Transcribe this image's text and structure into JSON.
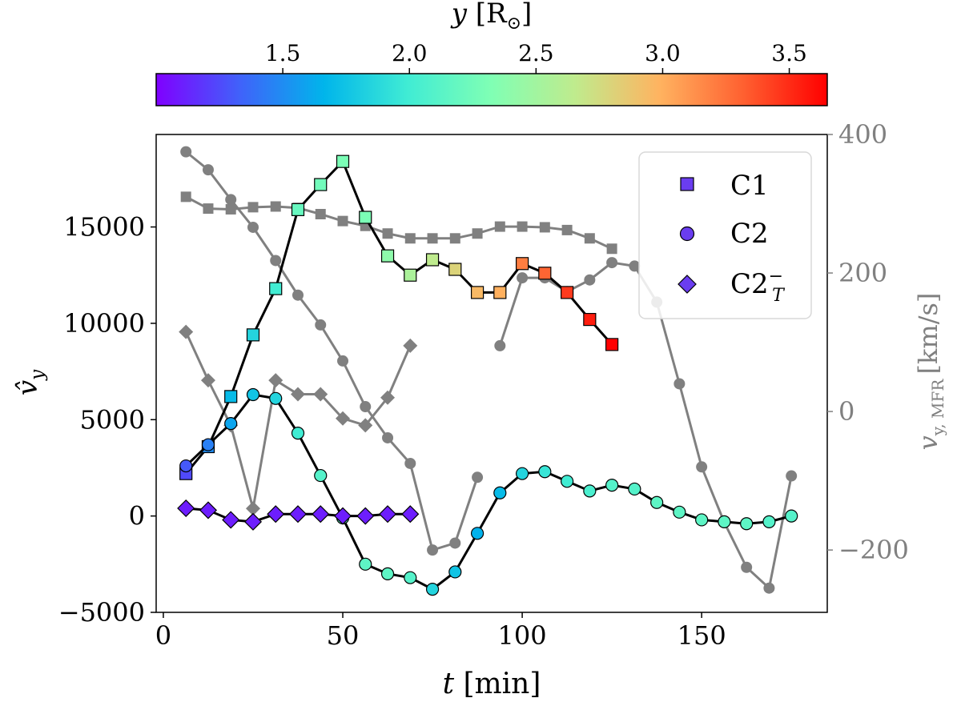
{
  "chart_data": {
    "type": "line",
    "xlabel_var": "t",
    "xlabel_unit": "[min]",
    "ylabel_left": "v̂",
    "ylabel_left_sub": "y",
    "ylabel_right_var": "v",
    "ylabel_right_sub": "y, MFR",
    "ylabel_right_unit": "[km/s]",
    "colorbar_label_var": "y",
    "colorbar_label_unit": "[R",
    "colorbar_label_sub": "⊙",
    "colorbar_label_close": "]",
    "xlim": [
      -2,
      185
    ],
    "ylim_left": [
      -5000,
      19800
    ],
    "ylim_right": [
      -290,
      400
    ],
    "clim": [
      1.0,
      3.65
    ],
    "x_ticks": [
      0,
      50,
      100,
      150
    ],
    "x_tick_labels": [
      "0",
      "50",
      "100",
      "150"
    ],
    "y_left_ticks": [
      -5000,
      0,
      5000,
      10000,
      15000
    ],
    "y_left_tick_labels": [
      "−5000",
      "0",
      "5000",
      "10000",
      "15000"
    ],
    "y_right_ticks": [
      -200,
      0,
      200,
      400
    ],
    "y_right_tick_labels": [
      "−200",
      "0",
      "200",
      "400"
    ],
    "cbar_ticks": [
      1.5,
      2.0,
      2.5,
      3.0,
      3.5
    ],
    "cbar_tick_labels": [
      "1.5",
      "2.0",
      "2.5",
      "3.0",
      "3.5"
    ],
    "legend": {
      "placement": "top-right",
      "entries": [
        {
          "label": "C1",
          "marker": "square"
        },
        {
          "label": "C2",
          "marker": "circle"
        },
        {
          "label": "C2",
          "sub": "T",
          "sup": "−",
          "marker": "diamond"
        }
      ]
    },
    "colors": {
      "mfr_line": "#808080",
      "main_line": "#000000",
      "legend_marker": "#6a3df0"
    },
    "series": [
      {
        "legend_index": 0,
        "marker": "square",
        "x": [
          6.3,
          12.5,
          18.8,
          25,
          31.3,
          37.5,
          43.8,
          50,
          56.3,
          62.5,
          68.8,
          75,
          81.3,
          87.5,
          93.8,
          100,
          106.3,
          112.5,
          118.8,
          125
        ],
        "v_hat": [
          2200,
          3600,
          6200,
          9400,
          11800,
          15900,
          17200,
          18400,
          15500,
          13500,
          12500,
          13300,
          12800,
          11600,
          11600,
          13100,
          12600,
          11600,
          10200,
          8900
        ],
        "y_pos": [
          1.25,
          1.5,
          1.7,
          1.85,
          2.0,
          2.2,
          2.25,
          2.3,
          2.3,
          2.4,
          2.55,
          2.65,
          2.8,
          2.95,
          3.0,
          3.2,
          3.3,
          3.45,
          3.55,
          3.65
        ],
        "mfr": [
          {
            "x": [
              6.3,
              12.5,
              18.8,
              25,
              31.3,
              37.5,
              43.8,
              50,
              56.3,
              62.5,
              68.8,
              75,
              81.3,
              87.5,
              93.8,
              100,
              106.3,
              112.5,
              118.8,
              125
            ],
            "v": [
              310,
              293,
              292,
              295,
              296,
              294,
              285,
              275,
              268,
              257,
              250,
              250,
              250,
              257,
              267,
              267,
              266,
              262,
              250,
              235
            ]
          }
        ]
      },
      {
        "legend_index": 1,
        "marker": "circle",
        "x": [
          6.3,
          12.5,
          18.8,
          25,
          31.3,
          37.5,
          43.8,
          50,
          56.3,
          62.5,
          68.8,
          75,
          81.3,
          87.5,
          93.8,
          100,
          106.3,
          112.5,
          118.8,
          125,
          131.3,
          137.5,
          143.8,
          150,
          156.3,
          162.5,
          168.8,
          175
        ],
        "v_hat": [
          2600,
          3700,
          4800,
          6300,
          6100,
          4300,
          2100,
          -100,
          -2500,
          -3000,
          -3200,
          -3800,
          -2900,
          -900,
          1200,
          2200,
          2300,
          1800,
          1300,
          1600,
          1400,
          700,
          200,
          -200,
          -300,
          -400,
          -300,
          0
        ],
        "y_pos": [
          1.3,
          1.45,
          1.6,
          1.75,
          1.85,
          2.0,
          2.1,
          2.15,
          2.15,
          2.15,
          2.1,
          1.85,
          1.75,
          1.65,
          1.7,
          1.85,
          1.95,
          2.0,
          2.05,
          2.1,
          2.1,
          2.15,
          2.15,
          2.15,
          2.15,
          2.15,
          2.1,
          2.1
        ],
        "mfr": [
          {
            "x": [
              6.3,
              12.5,
              18.8,
              25,
              31.3,
              37.5,
              43.8,
              50,
              56.3,
              62.5,
              68.8,
              75,
              81.3,
              87.5
            ],
            "v": [
              375,
              349,
              306,
              266,
              218,
              168,
              125,
              73,
              7,
              -38,
              -75,
              -200,
              -190,
              -95
            ]
          },
          {
            "x": [
              93.8,
              100,
              106.3,
              112.5,
              118.8,
              125,
              131.3,
              137.5,
              143.8,
              150,
              156.3,
              162.5,
              168.8,
              175
            ],
            "v": [
              95,
              193,
              193,
              173,
              190,
              215,
              210,
              158,
              40,
              -80,
              -160,
              -225,
              -255,
              -93
            ]
          }
        ]
      },
      {
        "legend_index": 2,
        "marker": "diamond",
        "x": [
          6.3,
          12.5,
          18.8,
          25,
          31.3,
          37.5,
          43.8,
          50,
          56.3,
          62.5,
          68.8
        ],
        "v_hat": [
          400,
          300,
          -200,
          -300,
          100,
          100,
          100,
          0,
          0,
          100,
          100
        ],
        "y_pos": [
          1.1,
          1.1,
          1.1,
          1.1,
          1.1,
          1.1,
          1.1,
          1.1,
          1.1,
          1.1,
          1.1
        ],
        "mfr": [
          {
            "x": [
              6.3,
              12.5,
              18.8,
              25,
              31.3,
              37.5,
              43.8,
              50,
              56.3,
              62.5,
              68.8
            ],
            "v": [
              115,
              45,
              -20,
              -140,
              45,
              25,
              25,
              -10,
              -20,
              20,
              95
            ]
          }
        ]
      }
    ]
  }
}
